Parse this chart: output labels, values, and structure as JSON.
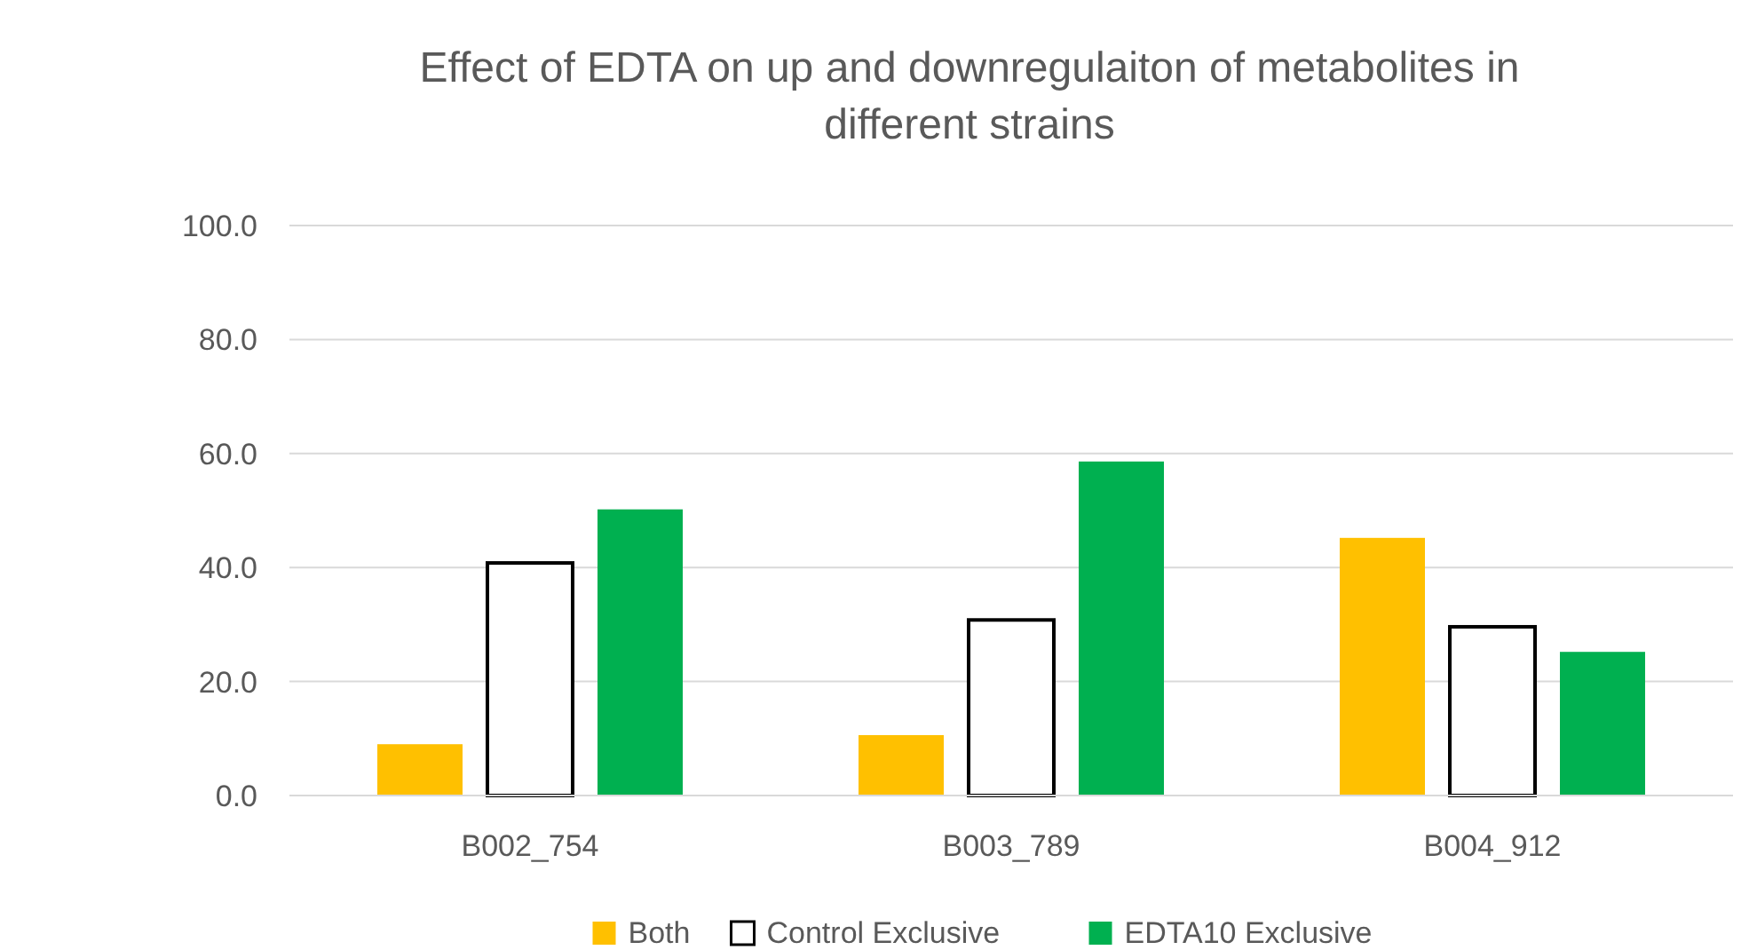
{
  "chart_data": {
    "type": "bar",
    "title": "Effect of EDTA on up and downregulaiton of metabolites in different strains",
    "categories": [
      "B002_754",
      "B003_789",
      "B004_912"
    ],
    "series": [
      {
        "name": "Both",
        "color": "#ffc000",
        "values": [
          9.0,
          10.6,
          45.2
        ]
      },
      {
        "name": "Control Exclusive",
        "color": "#ffffff",
        "values": [
          40.8,
          30.8,
          29.6
        ]
      },
      {
        "name": "EDTA10 Exclusive",
        "color": "#00b050",
        "values": [
          50.2,
          58.6,
          25.2
        ]
      }
    ],
    "ylim": [
      0,
      100
    ],
    "yticks": [
      {
        "value": 0,
        "label": "0.0"
      },
      {
        "value": 20,
        "label": "20.0"
      },
      {
        "value": 40,
        "label": "40.0"
      },
      {
        "value": 60,
        "label": "60.0"
      },
      {
        "value": 80,
        "label": "80.0"
      },
      {
        "value": 100,
        "label": "100.0"
      }
    ],
    "grid": "y",
    "legend": "bottom"
  }
}
